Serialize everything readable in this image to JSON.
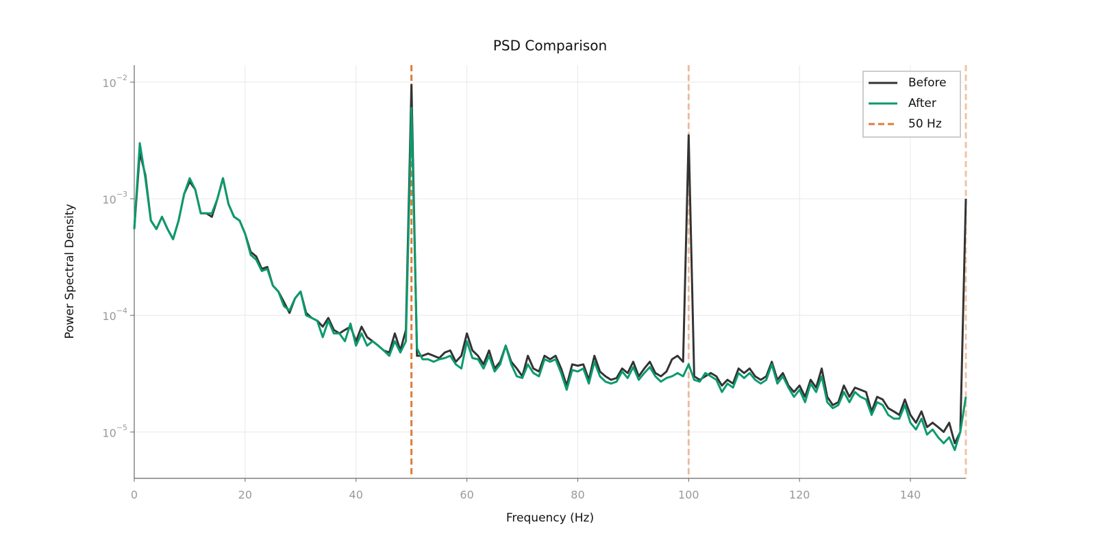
{
  "chart_data": {
    "type": "line",
    "title": "PSD Comparison",
    "x_label": "Frequency (Hz)",
    "y_label": "Power Spectral Density",
    "yscale": "log",
    "grid": true,
    "legend": "upper right",
    "xlim": [
      0,
      150
    ],
    "xticks": [
      0,
      20,
      40,
      60,
      80,
      100,
      120,
      140
    ],
    "ylim": [
      4e-06,
      0.014
    ],
    "yticks": [
      {
        "value": 0.01,
        "label": "10",
        "exponent": "−2"
      },
      {
        "value": 0.001,
        "label": "10",
        "exponent": "−3"
      },
      {
        "value": 0.0001,
        "label": "10",
        "exponent": "−4"
      },
      {
        "value": 1e-05,
        "label": "10",
        "exponent": "−5"
      }
    ],
    "x": [
      0,
      1,
      2,
      3,
      4,
      5,
      6,
      7,
      8,
      9,
      10,
      11,
      12,
      13,
      14,
      15,
      16,
      17,
      18,
      19,
      20,
      21,
      22,
      23,
      24,
      25,
      26,
      27,
      28,
      29,
      30,
      31,
      32,
      33,
      34,
      35,
      36,
      37,
      38,
      39,
      40,
      41,
      42,
      43,
      44,
      45,
      46,
      47,
      48,
      49,
      50,
      51,
      52,
      53,
      54,
      55,
      56,
      57,
      58,
      59,
      60,
      61,
      62,
      63,
      64,
      65,
      66,
      67,
      68,
      69,
      70,
      71,
      72,
      73,
      74,
      75,
      76,
      77,
      78,
      79,
      80,
      81,
      82,
      83,
      84,
      85,
      86,
      87,
      88,
      89,
      90,
      91,
      92,
      93,
      94,
      95,
      96,
      97,
      98,
      99,
      100,
      101,
      102,
      103,
      104,
      105,
      106,
      107,
      108,
      109,
      110,
      111,
      112,
      113,
      114,
      115,
      116,
      117,
      118,
      119,
      120,
      121,
      122,
      123,
      124,
      125,
      126,
      127,
      128,
      129,
      130,
      131,
      132,
      133,
      134,
      135,
      136,
      137,
      138,
      139,
      140,
      141,
      142,
      143,
      144,
      145,
      146,
      147,
      148,
      149,
      150
    ],
    "series": [
      {
        "name": "Before",
        "color": "#333333",
        "values": [
          0.00055,
          0.0025,
          0.0016,
          0.00065,
          0.00055,
          0.0007,
          0.00055,
          0.00045,
          0.00065,
          0.0011,
          0.0014,
          0.0012,
          0.00075,
          0.00075,
          0.0007,
          0.001,
          0.0015,
          0.0009,
          0.0007,
          0.00065,
          0.0005,
          0.00035,
          0.00032,
          0.00025,
          0.00026,
          0.00018,
          0.00016,
          0.00013,
          0.000105,
          0.00014,
          0.00016,
          0.000105,
          9.5e-05,
          9e-05,
          8e-05,
          9.5e-05,
          7.5e-05,
          7e-05,
          7.5e-05,
          8e-05,
          6e-05,
          8e-05,
          6.5e-05,
          6e-05,
          5.5e-05,
          5e-05,
          4.8e-05,
          7e-05,
          5e-05,
          7.5e-05,
          0.0095,
          4.5e-05,
          4.5e-05,
          4.7e-05,
          4.5e-05,
          4.3e-05,
          4.8e-05,
          5e-05,
          4e-05,
          4.5e-05,
          7e-05,
          5e-05,
          4.5e-05,
          3.8e-05,
          5e-05,
          3.5e-05,
          4e-05,
          5.5e-05,
          4e-05,
          3.5e-05,
          3e-05,
          4.5e-05,
          3.5e-05,
          3.3e-05,
          4.5e-05,
          4.2e-05,
          4.5e-05,
          3.5e-05,
          2.5e-05,
          3.8e-05,
          3.7e-05,
          3.8e-05,
          2.8e-05,
          4.5e-05,
          3.3e-05,
          3e-05,
          2.8e-05,
          2.9e-05,
          3.5e-05,
          3.2e-05,
          4e-05,
          3e-05,
          3.5e-05,
          4e-05,
          3.2e-05,
          3e-05,
          3.3e-05,
          4.2e-05,
          4.5e-05,
          4e-05,
          0.0035,
          3e-05,
          2.8e-05,
          3e-05,
          3.2e-05,
          3e-05,
          2.5e-05,
          2.8e-05,
          2.6e-05,
          3.5e-05,
          3.2e-05,
          3.5e-05,
          3e-05,
          2.8e-05,
          3e-05,
          4e-05,
          2.8e-05,
          3.2e-05,
          2.5e-05,
          2.2e-05,
          2.5e-05,
          2e-05,
          2.8e-05,
          2.4e-05,
          3.5e-05,
          2e-05,
          1.7e-05,
          1.8e-05,
          2.5e-05,
          2e-05,
          2.4e-05,
          2.3e-05,
          2.2e-05,
          1.5e-05,
          2e-05,
          1.9e-05,
          1.6e-05,
          1.5e-05,
          1.4e-05,
          1.9e-05,
          1.4e-05,
          1.2e-05,
          1.5e-05,
          1.1e-05,
          1.2e-05,
          1.1e-05,
          1e-05,
          1.2e-05,
          8e-06,
          1e-05,
          0.001
        ]
      },
      {
        "name": "After",
        "color": "#0a9a6e",
        "values": [
          0.00055,
          0.003,
          0.0015,
          0.00065,
          0.00055,
          0.0007,
          0.00055,
          0.00045,
          0.00065,
          0.0011,
          0.0015,
          0.0012,
          0.00075,
          0.00075,
          0.00075,
          0.001,
          0.0015,
          0.0009,
          0.0007,
          0.00065,
          0.0005,
          0.00033,
          0.0003,
          0.00024,
          0.00025,
          0.00018,
          0.00016,
          0.00012,
          0.00011,
          0.00014,
          0.00016,
          0.0001,
          9.5e-05,
          9e-05,
          6.5e-05,
          9e-05,
          7e-05,
          7e-05,
          6e-05,
          8.5e-05,
          5.5e-05,
          7e-05,
          5.5e-05,
          6e-05,
          5.5e-05,
          5e-05,
          4.5e-05,
          6e-05,
          4.8e-05,
          6e-05,
          0.006,
          5.2e-05,
          4.2e-05,
          4.2e-05,
          4e-05,
          4.2e-05,
          4.3e-05,
          4.5e-05,
          3.8e-05,
          3.5e-05,
          6e-05,
          4.3e-05,
          4.2e-05,
          3.5e-05,
          4.5e-05,
          3.3e-05,
          3.8e-05,
          5.5e-05,
          3.8e-05,
          3e-05,
          2.9e-05,
          3.8e-05,
          3.2e-05,
          3e-05,
          4.2e-05,
          4e-05,
          4.2e-05,
          3.2e-05,
          2.3e-05,
          3.4e-05,
          3.3e-05,
          3.5e-05,
          2.6e-05,
          4e-05,
          3e-05,
          2.7e-05,
          2.6e-05,
          2.7e-05,
          3.3e-05,
          2.9e-05,
          3.6e-05,
          2.8e-05,
          3.2e-05,
          3.6e-05,
          3e-05,
          2.7e-05,
          2.9e-05,
          3e-05,
          3.2e-05,
          3e-05,
          3.8e-05,
          2.8e-05,
          2.7e-05,
          3.2e-05,
          3e-05,
          2.8e-05,
          2.2e-05,
          2.6e-05,
          2.4e-05,
          3.2e-05,
          2.9e-05,
          3.2e-05,
          2.8e-05,
          2.6e-05,
          2.8e-05,
          3.8e-05,
          2.6e-05,
          3e-05,
          2.4e-05,
          2e-05,
          2.3e-05,
          1.8e-05,
          2.6e-05,
          2.2e-05,
          3e-05,
          1.8e-05,
          1.6e-05,
          1.7e-05,
          2.2e-05,
          1.8e-05,
          2.2e-05,
          2e-05,
          1.9e-05,
          1.4e-05,
          1.8e-05,
          1.7e-05,
          1.4e-05,
          1.3e-05,
          1.3e-05,
          1.7e-05,
          1.2e-05,
          1.05e-05,
          1.3e-05,
          9.5e-06,
          1.05e-05,
          9e-06,
          8e-06,
          9e-06,
          7e-06,
          1e-05,
          2e-05
        ]
      }
    ],
    "reference_lines": {
      "name": "50 Hz",
      "color": "#e07b39",
      "x": [
        50,
        100,
        150
      ]
    }
  }
}
